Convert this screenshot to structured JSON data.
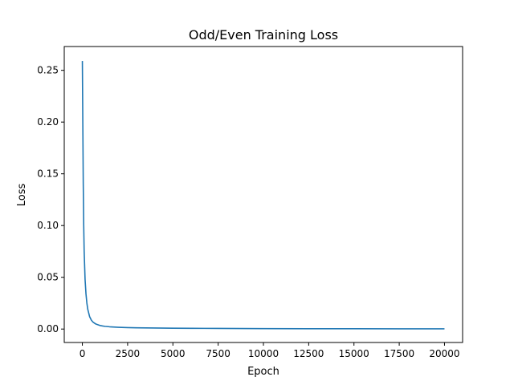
{
  "chart_data": {
    "type": "line",
    "title": "Odd/Even Training Loss",
    "xlabel": "Epoch",
    "ylabel": "Loss",
    "xlim": [
      -1000,
      21000
    ],
    "ylim": [
      -0.013,
      0.273
    ],
    "xticks": [
      0,
      2500,
      5000,
      7500,
      10000,
      12500,
      15000,
      17500,
      20000
    ],
    "xtick_labels": [
      "0",
      "2500",
      "5000",
      "7500",
      "10000",
      "12500",
      "15000",
      "17500",
      "20000"
    ],
    "yticks": [
      0.0,
      0.05,
      0.1,
      0.15,
      0.2,
      0.25
    ],
    "ytick_labels": [
      "0.00",
      "0.05",
      "0.10",
      "0.15",
      "0.20",
      "0.25"
    ],
    "grid": false,
    "legend": "none",
    "series": [
      {
        "color": "#1f77b4",
        "x": [
          0,
          25,
          50,
          75,
          100,
          150,
          200,
          250,
          300,
          400,
          500,
          600,
          750,
          1000,
          1250,
          1500,
          2000,
          2500,
          3000,
          4000,
          5000,
          6000,
          7500,
          10000,
          12500,
          15000,
          17500,
          20000
        ],
        "y": [
          0.259,
          0.2,
          0.14,
          0.1,
          0.075,
          0.048,
          0.034,
          0.025,
          0.019,
          0.012,
          0.0085,
          0.0065,
          0.0048,
          0.0033,
          0.0026,
          0.0022,
          0.0017,
          0.0014,
          0.0012,
          0.001,
          0.0008,
          0.0007,
          0.0006,
          0.0004,
          0.0003,
          0.0003,
          0.0002,
          0.0002
        ]
      }
    ]
  }
}
